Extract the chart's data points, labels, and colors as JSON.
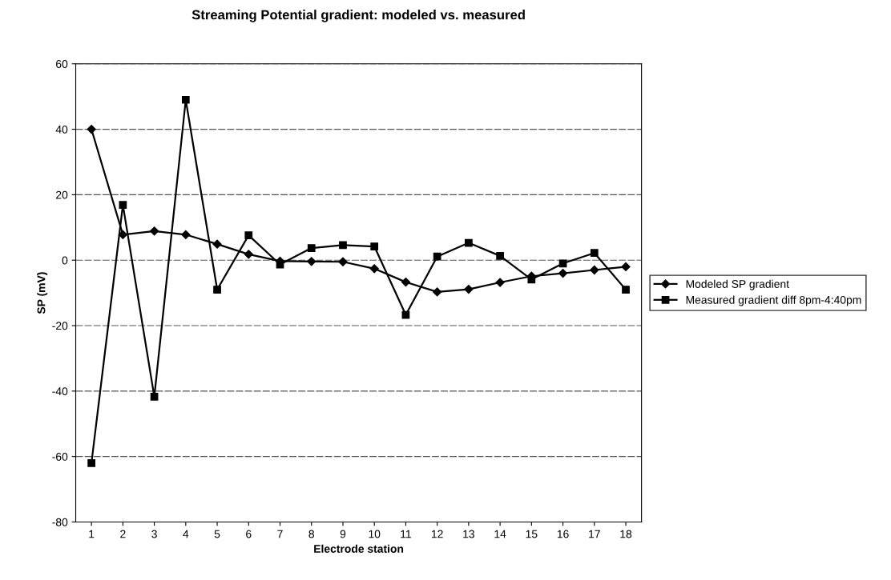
{
  "chart_data": {
    "type": "line",
    "title": "Streaming Potential gradient: modeled vs. measured",
    "xlabel": "Electrode station",
    "ylabel": "SP (mV)",
    "categories": [
      "1",
      "2",
      "3",
      "4",
      "5",
      "6",
      "7",
      "8",
      "9",
      "10",
      "11",
      "12",
      "13",
      "14",
      "15",
      "16",
      "17",
      "18"
    ],
    "series": [
      {
        "name": "Modeled SP gradient",
        "color": "#000000",
        "marker": "diamond",
        "values": [
          40,
          7.8,
          8.9,
          7.8,
          4.9,
          1.8,
          -0.3,
          -0.4,
          -0.5,
          -2.6,
          -6.7,
          -9.7,
          -8.9,
          -6.8,
          -4.9,
          -4.0,
          -3.0,
          -2.0
        ]
      },
      {
        "name": "Measured gradient diff 8pm-4:40pm",
        "color": "#000000",
        "marker": "square",
        "values": [
          -62,
          16.9,
          -41.7,
          49,
          -9,
          7.6,
          -1.3,
          3.7,
          4.6,
          4.2,
          -16.7,
          1.1,
          5.3,
          1.3,
          -5.9,
          -1.0,
          2.2,
          -9
        ]
      }
    ],
    "ylim": [
      -80,
      60
    ],
    "yticks": [
      -80,
      -60,
      -40,
      -20,
      0,
      20,
      40,
      60
    ],
    "grid": "y",
    "legend": "right",
    "line_style": "solid"
  }
}
